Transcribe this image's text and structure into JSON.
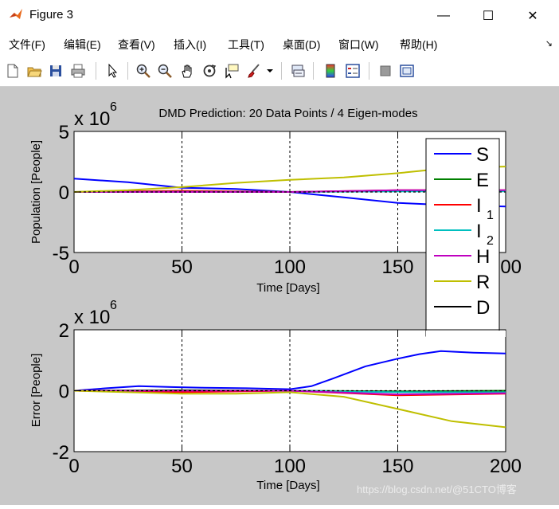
{
  "window": {
    "title": "Figure 3",
    "minimize": "—",
    "maximize": "☐",
    "close": "✕"
  },
  "menu": {
    "items": [
      "文件(F)",
      "编辑(E)",
      "查看(V)",
      "插入(I)",
      "工具(T)",
      "桌面(D)",
      "窗口(W)",
      "帮助(H)"
    ],
    "arrow": "↘"
  },
  "toolbar": {
    "icons": [
      "new-figure-icon",
      "open-file-icon",
      "save-icon",
      "print-icon",
      "edit-plot-arrow-icon",
      "zoom-in-icon",
      "zoom-out-icon",
      "pan-hand-icon",
      "rotate-3d-icon",
      "data-cursor-icon",
      "brush-icon",
      "brush-dropdown-icon",
      "link-plot-icon",
      "insert-colorbar-icon",
      "insert-legend-icon",
      "hide-plot-tools-icon",
      "show-plot-tools-icon"
    ]
  },
  "chart_data": [
    {
      "type": "line",
      "title": "DMD Prediction: 20 Data Points / 4 Eigen-modes",
      "xlabel": "Time [Days]",
      "ylabel": "Population [People]",
      "exponent": "x 10",
      "exponent_power": "6",
      "xlim": [
        0,
        200
      ],
      "ylim": [
        -5,
        5
      ],
      "xticks": [
        "0",
        "50",
        "100",
        "150",
        "200"
      ],
      "yticks": [
        "-5",
        "0",
        "5"
      ],
      "vlines": [
        50,
        100,
        150
      ],
      "hline": 0,
      "series": [
        {
          "name": "S",
          "color": "#0000ff",
          "x": [
            0,
            25,
            50,
            75,
            100,
            125,
            150,
            175,
            200
          ],
          "y": [
            1.1,
            0.8,
            0.35,
            0.25,
            0.0,
            -0.45,
            -0.9,
            -1.1,
            -1.2
          ]
        },
        {
          "name": "E",
          "color": "#008000",
          "x": [
            0,
            50,
            100,
            150,
            200
          ],
          "y": [
            0.0,
            0.05,
            0.0,
            0.1,
            0.1
          ]
        },
        {
          "name": "I",
          "sub": "1",
          "color": "#ff0000",
          "x": [
            0,
            50,
            100,
            150,
            200
          ],
          "y": [
            0.0,
            0.1,
            0.0,
            0.15,
            0.15
          ]
        },
        {
          "name": "I",
          "sub": "2",
          "color": "#00bfbf",
          "x": [
            0,
            50,
            100,
            150,
            200
          ],
          "y": [
            0.0,
            0.02,
            0.0,
            0.05,
            0.05
          ]
        },
        {
          "name": "H",
          "color": "#bf00bf",
          "x": [
            0,
            50,
            100,
            150,
            200
          ],
          "y": [
            0.0,
            0.0,
            0.0,
            0.15,
            0.15
          ]
        },
        {
          "name": "R",
          "color": "#bfbf00",
          "x": [
            0,
            25,
            50,
            75,
            100,
            125,
            150,
            175,
            200
          ],
          "y": [
            0.0,
            0.15,
            0.4,
            0.75,
            1.0,
            1.2,
            1.55,
            2.0,
            2.1
          ]
        },
        {
          "name": "D",
          "color": "#000000",
          "dashed": true,
          "x": [
            0,
            50,
            100,
            150,
            200
          ],
          "y": [
            0.0,
            0.0,
            0.0,
            0.0,
            0.0
          ]
        }
      ]
    },
    {
      "type": "line",
      "xlabel": "Time [Days]",
      "ylabel": "Error [People]",
      "exponent": "x 10",
      "exponent_power": "6",
      "xlim": [
        0,
        200
      ],
      "ylim": [
        -2,
        2
      ],
      "xticks": [
        "0",
        "50",
        "100",
        "150",
        "200"
      ],
      "yticks": [
        "-2",
        "0",
        "2"
      ],
      "vlines": [
        50,
        100,
        150
      ],
      "hline": 0,
      "series": [
        {
          "name": "S",
          "color": "#0000ff",
          "x": [
            0,
            15,
            30,
            45,
            60,
            80,
            100,
            110,
            120,
            135,
            150,
            160,
            170,
            185,
            200
          ],
          "y": [
            0.0,
            0.08,
            0.15,
            0.12,
            0.1,
            0.08,
            0.05,
            0.15,
            0.4,
            0.8,
            1.05,
            1.2,
            1.3,
            1.25,
            1.22
          ]
        },
        {
          "name": "E",
          "color": "#008000",
          "x": [
            0,
            50,
            100,
            150,
            200
          ],
          "y": [
            0.0,
            0.02,
            0.0,
            -0.02,
            0.0
          ]
        },
        {
          "name": "I",
          "sub": "1",
          "color": "#ff0000",
          "x": [
            0,
            50,
            100,
            150,
            200
          ],
          "y": [
            0.0,
            -0.05,
            0.0,
            -0.15,
            -0.1
          ]
        },
        {
          "name": "I",
          "sub": "2",
          "color": "#00bfbf",
          "x": [
            0,
            50,
            100,
            150,
            200
          ],
          "y": [
            0.0,
            0.0,
            0.0,
            -0.05,
            -0.05
          ]
        },
        {
          "name": "H",
          "color": "#bf00bf",
          "x": [
            0,
            50,
            100,
            150,
            200
          ],
          "y": [
            0.0,
            0.0,
            0.0,
            -0.12,
            -0.08
          ]
        },
        {
          "name": "R",
          "color": "#bfbf00",
          "x": [
            0,
            25,
            50,
            75,
            100,
            125,
            150,
            175,
            200
          ],
          "y": [
            0.0,
            -0.05,
            -0.1,
            -0.1,
            -0.05,
            -0.2,
            -0.6,
            -1.0,
            -1.2
          ]
        },
        {
          "name": "D",
          "color": "#000000",
          "dashed": true,
          "x": [
            0,
            50,
            100,
            150,
            200
          ],
          "y": [
            0.0,
            0.0,
            0.0,
            0.0,
            0.0
          ]
        }
      ]
    }
  ],
  "legend": {
    "entries": [
      {
        "name": "S",
        "color": "#0000ff"
      },
      {
        "name": "E",
        "color": "#008000"
      },
      {
        "name": "I",
        "sub": "1",
        "color": "#ff0000"
      },
      {
        "name": "I",
        "sub": "2",
        "color": "#00bfbf"
      },
      {
        "name": "H",
        "color": "#bf00bf"
      },
      {
        "name": "R",
        "color": "#bfbf00"
      },
      {
        "name": "D",
        "color": "#000000"
      }
    ]
  },
  "watermark": "https://blog.csdn.net/@51CTO博客"
}
